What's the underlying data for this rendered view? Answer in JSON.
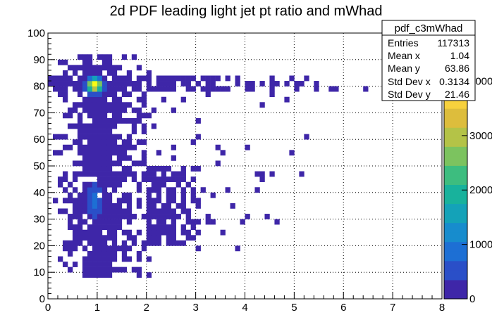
{
  "chart_data": {
    "type": "heatmap",
    "title": "2d PDF leading light jet pt ratio and mWhad",
    "xlabel": "",
    "ylabel": "",
    "xlim": [
      0,
      8
    ],
    "ylim": [
      0,
      100
    ],
    "x_ticks": [
      "0",
      "1",
      "2",
      "3",
      "4",
      "5",
      "6",
      "7",
      "8"
    ],
    "y_ticks": [
      "0",
      "10",
      "20",
      "30",
      "40",
      "50",
      "60",
      "70",
      "80",
      "90",
      "100"
    ],
    "grid": true,
    "colorbar": {
      "range": [
        0,
        4200
      ],
      "tick_labels": [
        "0",
        "1000",
        "2000",
        "3000",
        "4000"
      ],
      "tick_values": [
        0,
        1000,
        2000,
        3000,
        4000
      ],
      "palette": [
        "#3e26a8",
        "#2a4fc8",
        "#1d6fd4",
        "#178ccd",
        "#14a2b8",
        "#18b29c",
        "#3dbd7f",
        "#7cc35f",
        "#b4c347",
        "#ddbd3c",
        "#f7d13d",
        "#f9fb15"
      ]
    },
    "peak": {
      "x": 0.95,
      "y": 80.5,
      "value": 4200
    },
    "secondary_peak": {
      "x": 0.95,
      "y": 37,
      "value": 900
    },
    "stats_box": {
      "name": "pdf_c3mWhad",
      "rows": [
        {
          "label": "Entries",
          "value": "117313"
        },
        {
          "label": "Mean x",
          "value": "1.04"
        },
        {
          "label": "Mean y",
          "value": "63.86"
        },
        {
          "label": "Std Dev x",
          "value": "0.3134"
        },
        {
          "label": "Std Dev y",
          "value": "21.46"
        }
      ]
    }
  }
}
